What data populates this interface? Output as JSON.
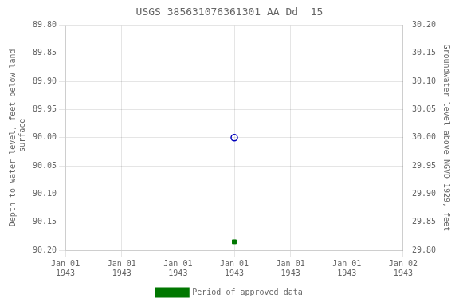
{
  "chart_data": {
    "type": "scatter",
    "title": "USGS 385631076361301 AA Dd  15",
    "ylabel": "Depth to water level, feet below land\n surface",
    "y2label": "Groundwater level above NGVD 1929, feet",
    "categories": [
      "Jan 01\n1943",
      "Jan 01\n1943",
      "Jan 01\n1943",
      "Jan 01\n1943",
      "Jan 01\n1943",
      "Jan 01\n1943",
      "Jan 02\n1943"
    ],
    "series": [
      {
        "color": "#0000bb",
        "marker": "open_circle",
        "values": [
          null,
          null,
          null,
          90.0,
          null,
          null,
          null
        ]
      },
      {
        "name": "Period of approved data",
        "color": "#007700",
        "marker": "square",
        "values": [
          null,
          null,
          null,
          90.185,
          null,
          null,
          null
        ]
      }
    ],
    "ylim": [
      90.2,
      89.8
    ],
    "yticks": [
      {
        "value": 89.8,
        "label": "89.80"
      },
      {
        "value": 89.85,
        "label": "89.85"
      },
      {
        "value": 89.9,
        "label": "89.90"
      },
      {
        "value": 89.95,
        "label": "89.95"
      },
      {
        "value": 90.0,
        "label": "90.00"
      },
      {
        "value": 90.05,
        "label": "90.05"
      },
      {
        "value": 90.1,
        "label": "90.10"
      },
      {
        "value": 90.15,
        "label": "90.15"
      },
      {
        "value": 90.2,
        "label": "90.20"
      }
    ],
    "y2lim": [
      29.8,
      30.2
    ],
    "y2ticks": [
      {
        "value": 30.2,
        "label": "30.20"
      },
      {
        "value": 30.15,
        "label": "30.15"
      },
      {
        "value": 30.1,
        "label": "30.10"
      },
      {
        "value": 30.05,
        "label": "30.05"
      },
      {
        "value": 30.0,
        "label": "30.00"
      },
      {
        "value": 29.95,
        "label": "29.95"
      },
      {
        "value": 29.9,
        "label": "29.90"
      },
      {
        "value": 29.85,
        "label": "29.85"
      },
      {
        "value": 29.8,
        "label": "29.80"
      }
    ],
    "grid": true,
    "legend": "bottom"
  }
}
